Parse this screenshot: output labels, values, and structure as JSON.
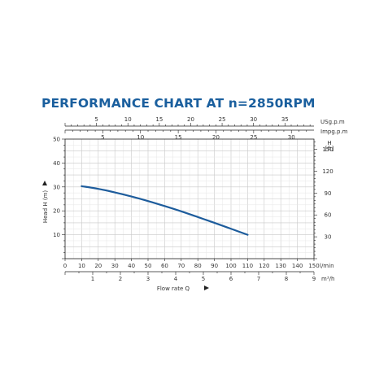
{
  "chart_data": {
    "type": "line",
    "title": "PERFORMANCE CHART AT n=2850RPM",
    "xlabel": "Flow rate Q",
    "ylabel": "Head H (m)",
    "x_unit": "l/min",
    "xlim": [
      0,
      150
    ],
    "ylim": [
      0,
      50
    ],
    "grid": true,
    "x_ticks": [
      0,
      10,
      20,
      30,
      40,
      50,
      60,
      70,
      80,
      90,
      100,
      110,
      120,
      130,
      140,
      150
    ],
    "y_ticks": [
      10,
      20,
      30,
      40,
      50
    ],
    "series": [
      {
        "x": [
          10,
          20,
          30,
          40,
          50,
          60,
          70,
          80,
          90,
          100,
          110
        ],
        "y": [
          30.3,
          29.2,
          27.7,
          26.0,
          24.1,
          22.0,
          19.8,
          17.4,
          15.0,
          12.5,
          10.0
        ]
      }
    ],
    "secondary_axes": {
      "m3h": {
        "unit": "m³/h",
        "ticks": [
          1,
          2,
          3,
          4,
          5,
          6,
          7,
          8,
          9
        ],
        "per_lmin": 0.06
      },
      "usgpm": {
        "unit": "USg.p.m",
        "ticks": [
          5,
          10,
          15,
          20,
          25,
          30,
          35
        ],
        "per_lmin": 0.26417
      },
      "impgpm": {
        "unit": "Impg.p.m",
        "ticks": [
          5,
          10,
          15,
          20,
          25,
          30
        ],
        "per_lmin": 0.21997
      },
      "head_ft": {
        "label": "H",
        "unit": "[ft]",
        "ticks": [
          30,
          60,
          90,
          120,
          150
        ],
        "per_m": 3.2808
      }
    },
    "colors": {
      "line": "#1d5c9c",
      "title": "#1a5f9e",
      "grid": "#d0d0d0",
      "axis": "#222222"
    }
  }
}
